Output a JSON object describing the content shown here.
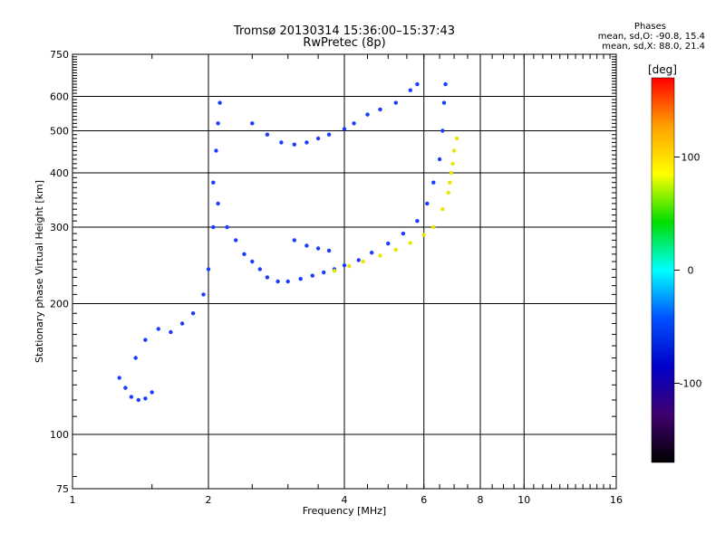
{
  "title": "Tromsø 20130314 15:36:00–15:37:43",
  "subtitle": "RwPretec (8p)",
  "stats": {
    "heading": "Phases",
    "line_o": "mean, sd,O: -90.8, 15.4",
    "line_x": "mean, sd,X: 88.0, 21.4"
  },
  "colorbar": {
    "label": "[deg]",
    "ticks": [
      "100",
      "0",
      "-100"
    ],
    "colors": [
      "#ff0000",
      "#ffa000",
      "#ffff00",
      "#00dd00",
      "#00ffff",
      "#0050ff",
      "#0000c8",
      "#400070",
      "#000000"
    ]
  },
  "chart_data": {
    "type": "scatter",
    "title": "Tromsø 20130314 15:36:00–15:37:43",
    "subtitle": "RwPretec (8p)",
    "xlabel": "Frequency [MHz]",
    "ylabel": "Stationary phase Virtual Height [km]",
    "x_scale": "log",
    "y_scale": "log",
    "xlim": [
      1,
      16
    ],
    "ylim": [
      75,
      750
    ],
    "x_ticks": [
      "1",
      "2",
      "4",
      "6",
      "8",
      "10",
      "16"
    ],
    "y_ticks": [
      "75",
      "100",
      "200",
      "300",
      "400",
      "500",
      "600",
      "750"
    ],
    "grid": true,
    "series": [
      {
        "name": "O",
        "points": [
          [
            1.27,
            135
          ],
          [
            1.31,
            128
          ],
          [
            1.35,
            122
          ],
          [
            1.4,
            120
          ],
          [
            1.45,
            121
          ],
          [
            1.5,
            125
          ],
          [
            1.38,
            150
          ],
          [
            1.45,
            165
          ],
          [
            1.55,
            175
          ],
          [
            1.65,
            172
          ],
          [
            1.75,
            180
          ],
          [
            1.85,
            190
          ],
          [
            1.95,
            210
          ],
          [
            2.0,
            240
          ],
          [
            2.05,
            300
          ],
          [
            2.05,
            380
          ],
          [
            2.08,
            450
          ],
          [
            2.1,
            520
          ],
          [
            2.12,
            580
          ],
          [
            2.1,
            340
          ],
          [
            2.2,
            300
          ],
          [
            2.3,
            280
          ],
          [
            2.4,
            260
          ],
          [
            2.5,
            250
          ],
          [
            2.6,
            240
          ],
          [
            2.7,
            230
          ],
          [
            2.85,
            225
          ],
          [
            3.0,
            225
          ],
          [
            3.2,
            228
          ],
          [
            3.4,
            232
          ],
          [
            3.6,
            236
          ],
          [
            3.8,
            240
          ],
          [
            4.0,
            245
          ],
          [
            4.3,
            252
          ],
          [
            4.6,
            262
          ],
          [
            5.0,
            275
          ],
          [
            5.4,
            290
          ],
          [
            5.8,
            310
          ],
          [
            6.1,
            340
          ],
          [
            6.3,
            380
          ],
          [
            6.5,
            430
          ],
          [
            6.6,
            500
          ],
          [
            6.65,
            580
          ],
          [
            6.7,
            640
          ],
          [
            2.5,
            520
          ],
          [
            2.7,
            490
          ],
          [
            2.9,
            470
          ],
          [
            3.1,
            465
          ],
          [
            3.3,
            470
          ],
          [
            3.5,
            480
          ],
          [
            3.7,
            490
          ],
          [
            4.0,
            505
          ],
          [
            4.2,
            520
          ],
          [
            4.5,
            545
          ],
          [
            4.8,
            560
          ],
          [
            5.2,
            580
          ],
          [
            5.6,
            620
          ],
          [
            5.8,
            640
          ],
          [
            3.1,
            280
          ],
          [
            3.3,
            272
          ],
          [
            3.5,
            268
          ],
          [
            3.7,
            265
          ]
        ]
      },
      {
        "name": "X",
        "points": [
          [
            3.8,
            238
          ],
          [
            4.1,
            244
          ],
          [
            4.4,
            250
          ],
          [
            4.8,
            258
          ],
          [
            5.2,
            266
          ],
          [
            5.6,
            276
          ],
          [
            6.0,
            288
          ],
          [
            6.3,
            300
          ],
          [
            6.6,
            330
          ],
          [
            6.8,
            360
          ],
          [
            6.9,
            400
          ],
          [
            7.0,
            450
          ],
          [
            7.1,
            480
          ],
          [
            6.85,
            380
          ],
          [
            6.95,
            420
          ]
        ]
      }
    ]
  }
}
